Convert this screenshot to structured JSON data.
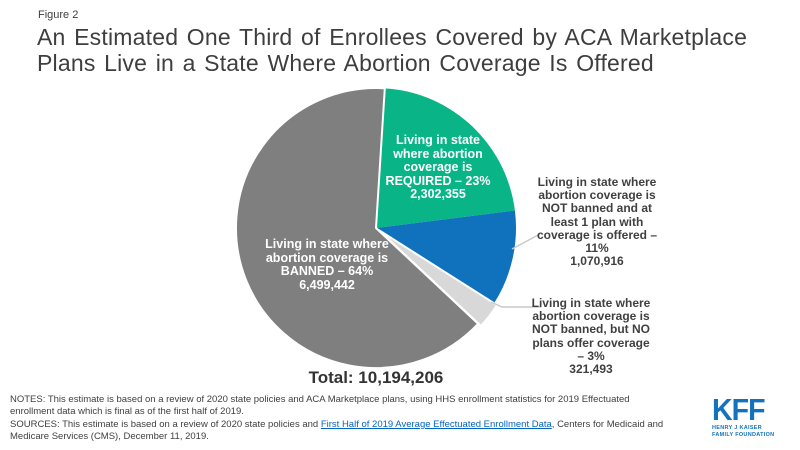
{
  "figure_label": "Figure 2",
  "title": "An Estimated One Third of Enrollees Covered by ACA Marketplace\nPlans Live in a State Where Abortion Coverage Is Offered",
  "chart_data": {
    "type": "pie",
    "title": "An Estimated One Third of Enrollees Covered by ACA Marketplace Plans Live in a State Where Abortion Coverage Is Offered",
    "total": 10194206,
    "total_label": "Total: 10,194,206",
    "start_angle_deg": 0,
    "direction": "clockwise",
    "slices": [
      {
        "name": "required",
        "label": "Living in state where abortion coverage is REQUIRED",
        "percent": 23,
        "value": 2302355,
        "value_text": "2,302,355",
        "color": "#09B487",
        "outlined": false,
        "exploded": false
      },
      {
        "name": "not-banned-offered",
        "label": "Living in state where abortion coverage is NOT banned and at least 1 plan with coverage is offered",
        "percent": 11,
        "value": 1070916,
        "value_text": "1,070,916",
        "color": "#1072BC",
        "outlined": false,
        "exploded": false
      },
      {
        "name": "not-banned-no-plans",
        "label": "Living in state where abortion coverage is NOT banned, but NO plans offer coverage",
        "percent": 3,
        "value": 321493,
        "value_text": "321,493",
        "color": "#D8D8D8",
        "outlined": true,
        "exploded": true
      },
      {
        "name": "banned",
        "label": "Living in state where abortion coverage is BANNED",
        "percent": 64,
        "value": 6499442,
        "value_text": "6,499,442",
        "color": "#7F7F7F",
        "outlined": true,
        "exploded": false
      }
    ]
  },
  "callouts": {
    "required": "Living in state\nwhere abortion\ncoverage is\nREQUIRED – 23%\n2,302,355",
    "banned": "Living in state where\nabortion coverage is\nBANNED – 64%\n6,499,442",
    "not_banned_offered": "Living in state where\nabortion coverage is\nNOT banned and at\nleast 1 plan with\ncoverage is offered –\n11%\n1,070,916",
    "not_banned_no_plans": "Living in state where\nabortion coverage is\nNOT banned, but NO\nplans offer coverage\n– 3%\n321,493"
  },
  "footer": {
    "notes": "NOTES: This estimate is based on a review of 2020 state policies and ACA Marketplace plans, using HHS enrollment statistics for 2019 Effectuated\nenrollment data which is final as of the first half of 2019.",
    "sources_prefix": "SOURCES: This estimate is based on a review of 2020 state policies and ",
    "sources_link": "First Half of 2019 Average Effectuated Enrollment Data",
    "sources_suffix": ", Centers for Medicaid and\nMedicare Services (CMS), December 11, 2019.",
    "link_color": "#0563C1"
  },
  "logo": {
    "text": "KFF",
    "subtext1": "HENRY J KAISER",
    "subtext2": "FAMILY FOUNDATION",
    "color": "#1372BC"
  }
}
